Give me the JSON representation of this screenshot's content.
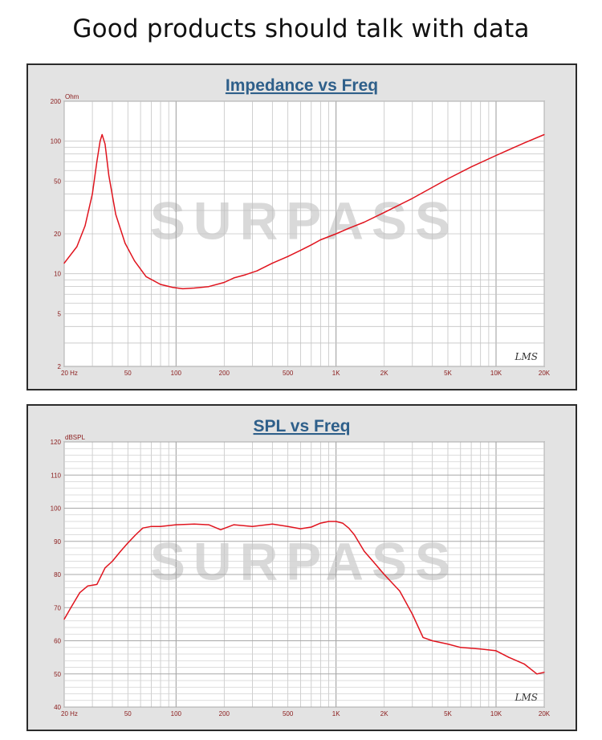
{
  "headline": "Good products should talk with data",
  "watermark": "SURPASS",
  "chart_data": [
    {
      "type": "line",
      "title": "Impedance vs Freq",
      "ylabel": "Ohm",
      "xscale": "log",
      "yscale": "log",
      "xlim": [
        20,
        20000
      ],
      "ylim": [
        2,
        200
      ],
      "x_ticks": [
        20,
        50,
        100,
        200,
        500,
        1000,
        2000,
        5000,
        10000,
        20000
      ],
      "x_tick_labels": [
        "20  Hz",
        "50",
        "100",
        "200",
        "500",
        "1K",
        "2K",
        "5K",
        "10K",
        "20K"
      ],
      "y_ticks": [
        2,
        5,
        10,
        20,
        50,
        100,
        200
      ],
      "y_tick_labels": [
        "2",
        "5",
        "10",
        "20",
        "50",
        "100",
        "200"
      ],
      "grid": true,
      "mark": "LMS",
      "line_color": "#e0141e",
      "series": [
        {
          "x": [
            20,
            24,
            27,
            30,
            32,
            33.5,
            34.5,
            36,
            38,
            42,
            48,
            55,
            65,
            80,
            95,
            110,
            130,
            160,
            200,
            230,
            270,
            320,
            400,
            500,
            600,
            700,
            800,
            1000,
            1200,
            1500,
            2000,
            3000,
            5000,
            7000,
            10000,
            15000,
            20000
          ],
          "y": [
            12,
            16,
            23,
            40,
            70,
            100,
            112,
            95,
            55,
            28,
            17,
            12.5,
            9.5,
            8.3,
            7.9,
            7.7,
            7.8,
            8.0,
            8.6,
            9.3,
            9.8,
            10.5,
            12,
            13.5,
            15,
            16.5,
            18,
            20,
            22,
            24.5,
            29,
            37,
            52,
            64,
            78,
            97,
            112
          ]
        }
      ]
    },
    {
      "type": "line",
      "title": "SPL vs Freq",
      "ylabel": "dBSPL",
      "xscale": "log",
      "yscale": "linear",
      "xlim": [
        20,
        20000
      ],
      "ylim": [
        40,
        120
      ],
      "x_ticks": [
        20,
        50,
        100,
        200,
        500,
        1000,
        2000,
        5000,
        10000,
        20000
      ],
      "x_tick_labels": [
        "20  Hz",
        "50",
        "100",
        "200",
        "500",
        "1K",
        "2K",
        "5K",
        "10K",
        "20K"
      ],
      "y_ticks": [
        40,
        50,
        60,
        70,
        80,
        90,
        100,
        110,
        120
      ],
      "y_tick_labels": [
        "40",
        "50",
        "60",
        "70",
        "80",
        "90",
        "100",
        "110",
        "120"
      ],
      "grid": true,
      "mark": "LMS",
      "line_color": "#e0141e",
      "series": [
        {
          "x": [
            20,
            22,
            25,
            28,
            32,
            36,
            40,
            45,
            50,
            56,
            62,
            70,
            80,
            100,
            130,
            160,
            190,
            230,
            300,
            400,
            500,
            600,
            700,
            800,
            900,
            1000,
            1100,
            1200,
            1300,
            1500,
            1700,
            2000,
            2500,
            3000,
            3500,
            4000,
            5000,
            6000,
            8000,
            10000,
            12000,
            15000,
            18000,
            20000
          ],
          "y": [
            66.5,
            70,
            74.5,
            76.5,
            77,
            82,
            84,
            87,
            89.5,
            92,
            94,
            94.5,
            94.5,
            95,
            95.2,
            95,
            93.5,
            95,
            94.5,
            95.2,
            94.5,
            93.8,
            94.3,
            95.5,
            96,
            96,
            95.5,
            94,
            92,
            87,
            84,
            80,
            75,
            68,
            61,
            60,
            59,
            58,
            57.5,
            57,
            55,
            53,
            50,
            50.5
          ]
        }
      ]
    }
  ]
}
